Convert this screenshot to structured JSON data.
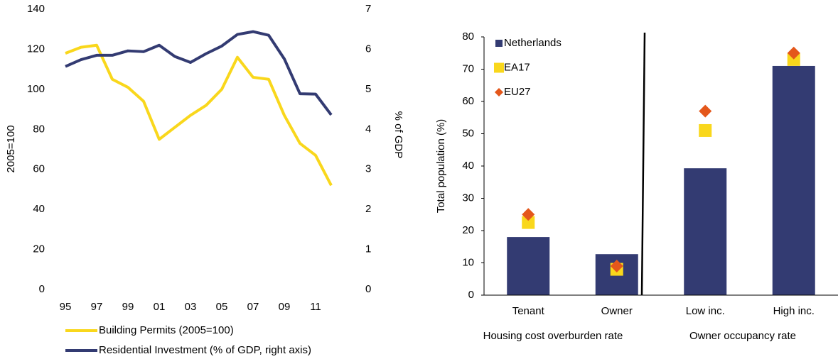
{
  "chart_data": [
    {
      "type": "line",
      "categories": [
        "95",
        null,
        "97",
        null,
        "99",
        null,
        "01",
        null,
        "03",
        null,
        "05",
        null,
        "07",
        null,
        "09",
        null,
        "11",
        null
      ],
      "ylabel": "2005=100",
      "y2label": "% of GDP",
      "ylim": [
        0,
        140
      ],
      "yticks": [
        0,
        20,
        40,
        60,
        80,
        100,
        120,
        140
      ],
      "y2lim": [
        0,
        7
      ],
      "y2ticks": [
        0,
        1,
        2,
        3,
        4,
        5,
        6,
        7
      ],
      "legend": "bottom",
      "series": [
        {
          "name": "Building Permits (2005=100)",
          "color": "#f9d71c",
          "values": [
            118,
            121,
            122,
            105,
            101,
            94,
            75,
            81,
            87,
            92,
            100,
            116,
            106,
            105,
            87,
            73,
            67,
            52
          ]
        },
        {
          "name": "Residential Investment (% of GDP, right axis)",
          "color": "#333b72",
          "axis": "y2",
          "values": [
            5.57,
            5.74,
            5.85,
            5.85,
            5.96,
            5.94,
            6.1,
            5.82,
            5.67,
            5.89,
            6.08,
            6.37,
            6.44,
            6.35,
            5.76,
            4.89,
            4.88,
            4.36
          ]
        }
      ]
    },
    {
      "type": "bar",
      "categories": [
        "Tenant",
        "Owner",
        "Low inc.",
        "High inc."
      ],
      "groups": [
        "Housing cost overburden rate",
        "Owner occupancy rate"
      ],
      "ylabel": "Total population (%)",
      "ylim": [
        0,
        80
      ],
      "yticks": [
        0,
        10,
        20,
        30,
        40,
        50,
        60,
        70,
        80
      ],
      "legend": "upper left",
      "series": [
        {
          "name": "Netherlands",
          "color": "#333b72",
          "marker": "bar",
          "values": [
            18,
            12.7,
            39.3,
            71
          ]
        },
        {
          "name": "EA17",
          "color": "#f9d71c",
          "marker": "square",
          "values": [
            22.5,
            8,
            51,
            73
          ]
        },
        {
          "name": "EU27",
          "color": "#e4571b",
          "marker": "diamond",
          "values": [
            25,
            9,
            57,
            75
          ]
        }
      ]
    }
  ]
}
